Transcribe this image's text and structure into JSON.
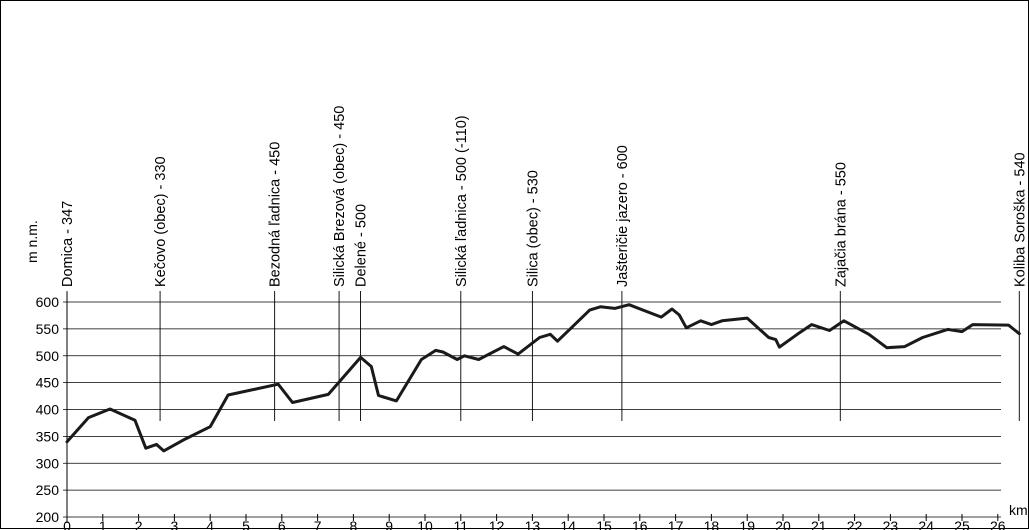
{
  "chart_data": {
    "type": "line",
    "title": "",
    "xlabel": "km",
    "ylabel": "m n.m.",
    "xlim": [
      0,
      26
    ],
    "ylim": [
      200,
      600
    ],
    "grid": true,
    "x_ticks": [
      0,
      1,
      2,
      3,
      4,
      5,
      6,
      7,
      8,
      9,
      10,
      11,
      12,
      13,
      14,
      15,
      16,
      17,
      18,
      19,
      20,
      21,
      22,
      23,
      24,
      25,
      26
    ],
    "y_ticks": [
      200,
      250,
      300,
      350,
      400,
      450,
      500,
      550,
      600
    ],
    "series": [
      {
        "points": [
          [
            0,
            340
          ],
          [
            0.6,
            385
          ],
          [
            1.2,
            401
          ],
          [
            1.9,
            380
          ],
          [
            2.2,
            328
          ],
          [
            2.5,
            335
          ],
          [
            2.7,
            323
          ],
          [
            3.3,
            345
          ],
          [
            4.0,
            368
          ],
          [
            4.5,
            427
          ],
          [
            5.9,
            447
          ],
          [
            6.3,
            413
          ],
          [
            7.3,
            428
          ],
          [
            8.2,
            497
          ],
          [
            8.5,
            480
          ],
          [
            8.7,
            426
          ],
          [
            9.2,
            416
          ],
          [
            9.9,
            493
          ],
          [
            10.3,
            510
          ],
          [
            10.5,
            507
          ],
          [
            10.9,
            493
          ],
          [
            11.1,
            500
          ],
          [
            11.5,
            493
          ],
          [
            12.2,
            517
          ],
          [
            12.6,
            503
          ],
          [
            13.2,
            534
          ],
          [
            13.5,
            540
          ],
          [
            13.7,
            527
          ],
          [
            14.6,
            585
          ],
          [
            14.9,
            591
          ],
          [
            15.3,
            588
          ],
          [
            15.7,
            595
          ],
          [
            16.6,
            572
          ],
          [
            16.9,
            587
          ],
          [
            17.1,
            576
          ],
          [
            17.3,
            552
          ],
          [
            17.7,
            565
          ],
          [
            18.0,
            558
          ],
          [
            18.3,
            565
          ],
          [
            19.0,
            570
          ],
          [
            19.6,
            534
          ],
          [
            19.8,
            530
          ],
          [
            19.9,
            516
          ],
          [
            20.4,
            540
          ],
          [
            20.8,
            558
          ],
          [
            21.3,
            547
          ],
          [
            21.7,
            565
          ],
          [
            22.4,
            540
          ],
          [
            22.9,
            515
          ],
          [
            23.4,
            517
          ],
          [
            23.9,
            534
          ],
          [
            24.6,
            549
          ],
          [
            25.0,
            545
          ],
          [
            25.3,
            558
          ],
          [
            26.3,
            557
          ],
          [
            26.6,
            541
          ]
        ]
      }
    ],
    "stations": [
      {
        "label": "Domica - 347",
        "km": 0
      },
      {
        "label": "Kečovo (obec) - 330",
        "km": 2.6
      },
      {
        "label": "Bezodná ľadnica - 450",
        "km": 5.8
      },
      {
        "label": "Silická Brezová (obec) - 450",
        "km": 7.6
      },
      {
        "label": "Delené - 500",
        "km": 8.2
      },
      {
        "label": "Silická ľadnica - 500 (-110)",
        "km": 11.0
      },
      {
        "label": "Silica (obec) - 530",
        "km": 13.0
      },
      {
        "label": "Jašteričie jazero - 600",
        "km": 15.5
      },
      {
        "label": "Zajačia brána - 550",
        "km": 21.6
      },
      {
        "label": "Koliba Soroška - 540",
        "km": 26.6
      }
    ]
  }
}
